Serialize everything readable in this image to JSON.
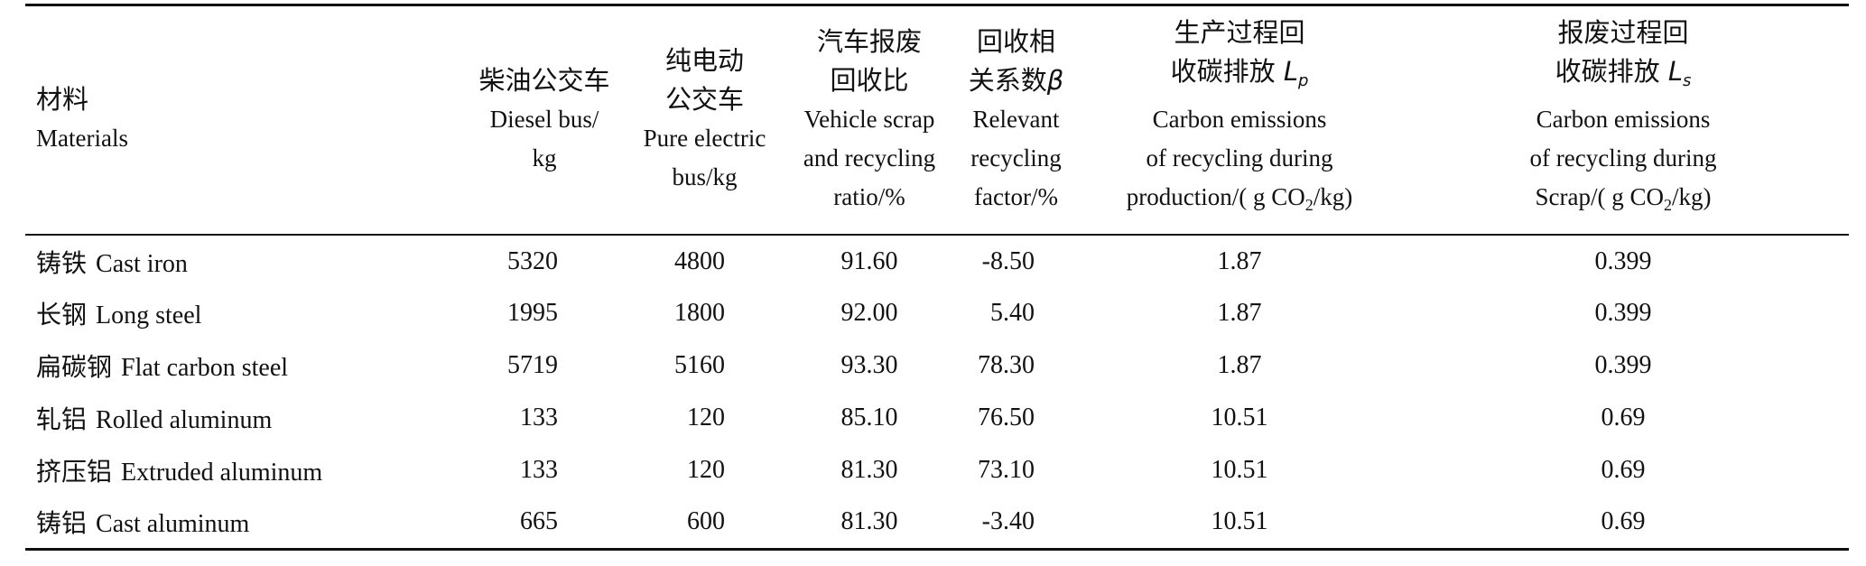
{
  "table": {
    "headers": [
      {
        "zh_lines": [
          "材料"
        ],
        "en_lines": [
          "Materials"
        ]
      },
      {
        "zh_lines": [
          "柴油公交车"
        ],
        "en_lines": [
          "Diesel bus/",
          "kg"
        ]
      },
      {
        "zh_lines": [
          "纯电动",
          "公交车"
        ],
        "en_lines": [
          "Pure electric",
          "bus/kg"
        ]
      },
      {
        "zh_lines": [
          "汽车报废",
          "回收比"
        ],
        "en_lines": [
          "Vehicle scrap",
          "and recycling",
          "ratio/%"
        ]
      },
      {
        "zh_lines": [
          "回收相",
          "关系数"
        ],
        "symbol": "β",
        "en_lines": [
          "Relevant",
          "recycling",
          "factor/%"
        ]
      },
      {
        "zh_lines": [
          "生产过程回",
          "收碳排放"
        ],
        "symbol": "L",
        "symbol_sub": "p",
        "en_lines": [
          "Carbon emissions",
          "of recycling during",
          "production/( g CO",
          "/kg)"
        ],
        "co2_sub": "2"
      },
      {
        "zh_lines": [
          "报废过程回",
          "收碳排放"
        ],
        "symbol": "L",
        "symbol_sub": "s",
        "en_lines": [
          "Carbon emissions",
          "of recycling during",
          "Scrap/( g CO",
          "/kg)"
        ],
        "co2_sub": "2"
      }
    ],
    "rows": [
      {
        "zh": "铸铁",
        "en": "Cast iron",
        "diesel": "5320",
        "electric": "4800",
        "ratio": "91.60",
        "factor": "-8.50",
        "lp": "1.87",
        "ls": "0.399"
      },
      {
        "zh": "长钢",
        "en": "Long steel",
        "diesel": "1995",
        "electric": "1800",
        "ratio": "92.00",
        "factor": "5.40",
        "lp": "1.87",
        "ls": "0.399"
      },
      {
        "zh": "扁碳钢",
        "en": "Flat carbon steel",
        "diesel": "5719",
        "electric": "5160",
        "ratio": "93.30",
        "factor": "78.30",
        "lp": "1.87",
        "ls": "0.399"
      },
      {
        "zh": "轧铝",
        "en": "Rolled aluminum",
        "diesel": "133",
        "electric": "120",
        "ratio": "85.10",
        "factor": "76.50",
        "lp": "10.51",
        "ls": "0.69"
      },
      {
        "zh": "挤压铝",
        "en": "Extruded aluminum",
        "diesel": "133",
        "electric": "120",
        "ratio": "81.30",
        "factor": "73.10",
        "lp": "10.51",
        "ls": "0.69"
      },
      {
        "zh": "铸铝",
        "en": "Cast aluminum",
        "diesel": "665",
        "electric": "600",
        "ratio": "81.30",
        "factor": "-3.40",
        "lp": "10.51",
        "ls": "0.69"
      }
    ]
  }
}
